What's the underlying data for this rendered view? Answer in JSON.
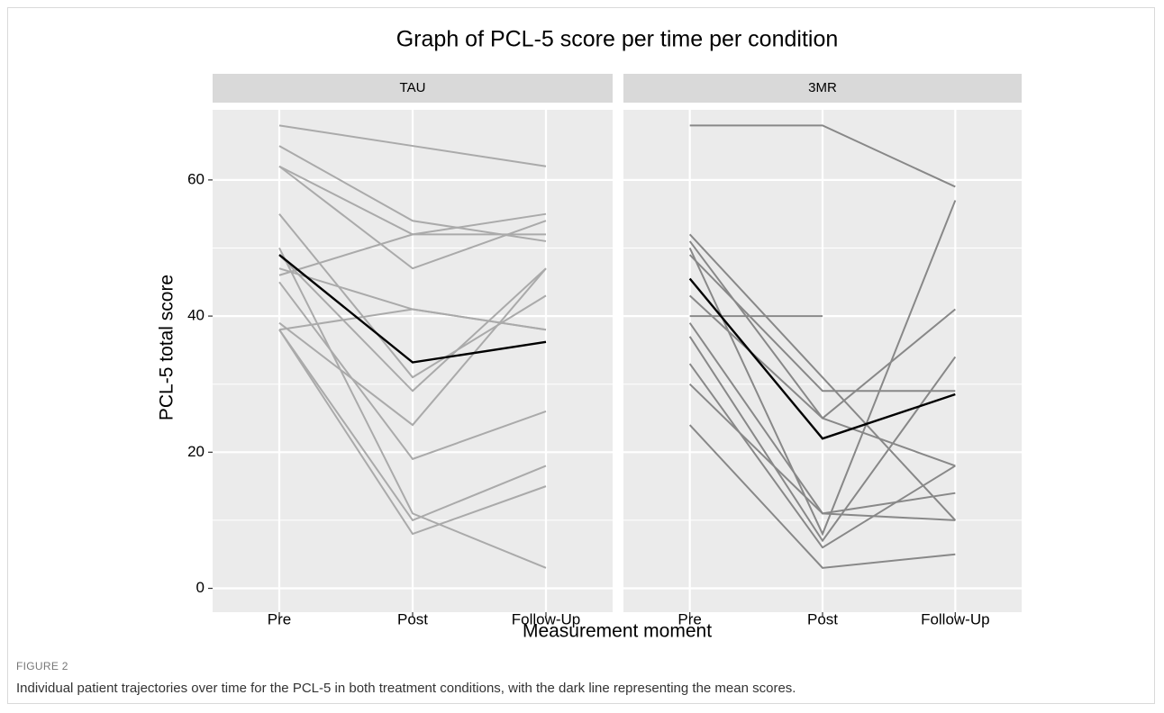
{
  "chart_data": {
    "type": "line",
    "title": "Graph of PCL-5 score per time per condition",
    "x_label": "Measurement moment",
    "y_label": "PCL-5 total score",
    "categories": [
      "Pre",
      "Post",
      "Follow-Up"
    ],
    "ylim": [
      -3.5,
      70.3
    ],
    "yticks": [
      0,
      20,
      40,
      60
    ],
    "grid": true,
    "panels": [
      {
        "title": "TAU",
        "series": [
          {
            "color": "#aaaaaa",
            "values": [
              68,
              65,
              62
            ]
          },
          {
            "color": "#aaaaaa",
            "values": [
              65,
              54,
              51
            ]
          },
          {
            "color": "#aaaaaa",
            "values": [
              62,
              52,
              52
            ]
          },
          {
            "color": "#aaaaaa",
            "values": [
              62,
              47,
              54
            ]
          },
          {
            "color": "#aaaaaa",
            "values": [
              55,
              31,
              43
            ]
          },
          {
            "color": "#aaaaaa",
            "values": [
              50,
              11,
              3
            ]
          },
          {
            "color": "#aaaaaa",
            "values": [
              49,
              29,
              47
            ]
          },
          {
            "color": "#aaaaaa",
            "values": [
              47,
              41,
              38
            ]
          },
          {
            "color": "#aaaaaa",
            "values": [
              46,
              52,
              55
            ]
          },
          {
            "color": "#aaaaaa",
            "values": [
              45,
              19,
              26
            ]
          },
          {
            "color": "#aaaaaa",
            "values": [
              39,
              24,
              47
            ]
          },
          {
            "color": "#aaaaaa",
            "values": [
              38,
              41,
              38
            ]
          },
          {
            "color": "#aaaaaa",
            "values": [
              38,
              10,
              18
            ]
          },
          {
            "color": "#aaaaaa",
            "values": [
              38,
              8,
              15
            ]
          },
          {
            "color": "#000000",
            "values": [
              49,
              33.2,
              36.2
            ]
          }
        ]
      },
      {
        "title": "3MR",
        "series": [
          {
            "color": "#888888",
            "values": [
              68,
              68,
              59
            ]
          },
          {
            "color": "#888888",
            "values": [
              40,
              40,
              null
            ]
          },
          {
            "color": "#888888",
            "values": [
              52,
              31,
              10
            ]
          },
          {
            "color": "#888888",
            "values": [
              51,
              25,
              18
            ]
          },
          {
            "color": "#888888",
            "values": [
              50,
              8,
              57
            ]
          },
          {
            "color": "#888888",
            "values": [
              49,
              29,
              29
            ]
          },
          {
            "color": "#888888",
            "values": [
              43,
              25,
              41
            ]
          },
          {
            "color": "#888888",
            "values": [
              39,
              11,
              14
            ]
          },
          {
            "color": "#888888",
            "values": [
              37,
              7,
              34
            ]
          },
          {
            "color": "#888888",
            "values": [
              33,
              6,
              18
            ]
          },
          {
            "color": "#888888",
            "values": [
              30,
              11,
              10
            ]
          },
          {
            "color": "#888888",
            "values": [
              24,
              3,
              5
            ]
          },
          {
            "color": "#000000",
            "values": [
              45.5,
              22,
              28.5
            ]
          }
        ]
      }
    ]
  },
  "caption": {
    "label": "FIGURE 2",
    "text": "Individual patient trajectories over time for the PCL-5 in both treatment conditions, with the dark line representing the mean scores."
  }
}
